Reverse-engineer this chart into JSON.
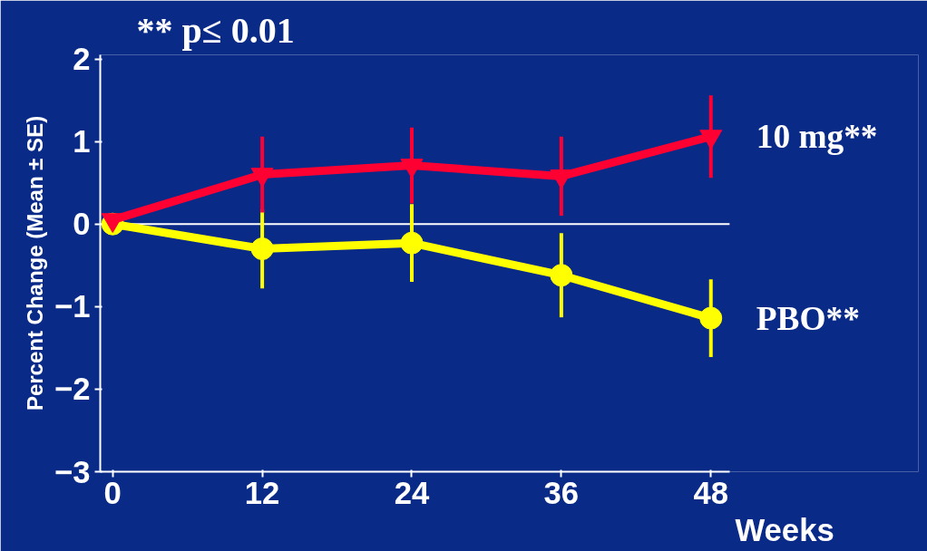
{
  "chart_data": {
    "type": "line",
    "title": "** p≤ 0.01",
    "ylabel": "Percent Change (Mean ± SE)",
    "xlabel": "Weeks",
    "x": [
      0,
      12,
      24,
      36,
      48
    ],
    "series": [
      {
        "name": "10 mg**",
        "color": "#ff0033",
        "marker": "triangle",
        "values": [
          0.05,
          0.6,
          0.71,
          0.58,
          1.06
        ],
        "errors": [
          null,
          0.46,
          0.46,
          0.48,
          0.5
        ]
      },
      {
        "name": "PBO**",
        "color": "#ffff00",
        "marker": "circle",
        "values": [
          0,
          -0.3,
          -0.23,
          -0.62,
          -1.14
        ],
        "errors": [
          null,
          0.48,
          0.47,
          0.51,
          0.47
        ]
      }
    ],
    "xlim": [
      -1,
      49.5
    ],
    "ylim": [
      -3,
      2.05
    ],
    "xticks": [
      0,
      12,
      24,
      36,
      48
    ],
    "yticks": [
      -3,
      -2,
      -1,
      0,
      1,
      2
    ],
    "ref_lines": [
      {
        "axis": "y",
        "value": 0,
        "label": null,
        "color": "#ffffff"
      }
    ],
    "grid": false,
    "legend": false,
    "line_style": "solid"
  }
}
